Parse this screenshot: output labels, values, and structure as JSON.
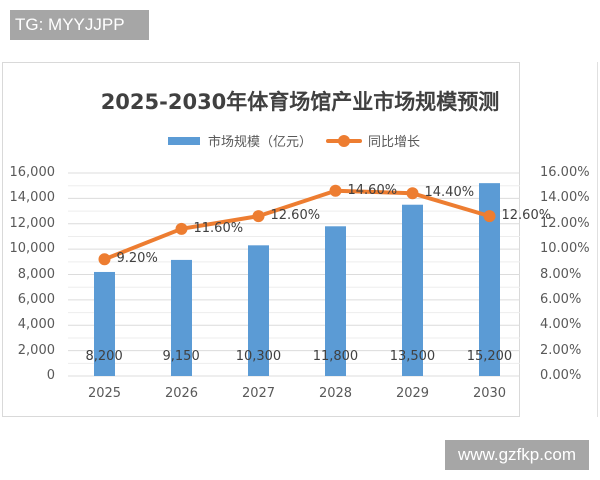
{
  "badges": {
    "top_left": "TG: MYYJJPP",
    "bottom_right": "www.gzfkp.com"
  },
  "colors": {
    "bar": "#5b9bd5",
    "line": "#ed7d31",
    "grid": "#e3e3e3",
    "text": "#595959",
    "badge_bg": "#a6a6a6"
  },
  "chart": {
    "title": "2025-2030年体育场馆产业市场规模预测",
    "legend": {
      "bar_label": "市场规模（亿元）",
      "line_label": "同比增长"
    },
    "y_left_ticks": [
      "16,000",
      "14,000",
      "12,000",
      "10,000",
      "8,000",
      "6,000",
      "4,000",
      "2,000",
      "0"
    ],
    "y_right_ticks": [
      "16.00%",
      "14.00%",
      "12.00%",
      "10.00%",
      "8.00%",
      "6.00%",
      "4.00%",
      "2.00%",
      "0.00%"
    ],
    "x_ticks": [
      "2025",
      "2026",
      "2027",
      "2028",
      "2029",
      "2030"
    ],
    "bar_labels": [
      "8,200",
      "9,150",
      "10,300",
      "11,800",
      "13,500",
      "15,200"
    ],
    "line_labels": [
      "9.20%",
      "11.60%",
      "12.60%",
      "14.60%",
      "14.40%",
      "12.60%"
    ]
  },
  "chart_data": {
    "type": "bar",
    "title": "2025-2030年体育场馆产业市场规模预测",
    "categories": [
      "2025",
      "2026",
      "2027",
      "2028",
      "2029",
      "2030"
    ],
    "series": [
      {
        "name": "市场规模（亿元）",
        "type": "bar",
        "axis": "left",
        "values": [
          8200,
          9150,
          10300,
          11800,
          13500,
          15200
        ]
      },
      {
        "name": "同比增长",
        "type": "line",
        "axis": "right",
        "values": [
          9.2,
          11.6,
          12.6,
          14.6,
          14.4,
          12.6
        ],
        "unit": "%"
      }
    ],
    "xlabel": "",
    "ylabel": "",
    "ylim": [
      0,
      16000
    ],
    "y2lim": [
      0,
      16
    ],
    "grid": true,
    "legend_position": "top"
  }
}
